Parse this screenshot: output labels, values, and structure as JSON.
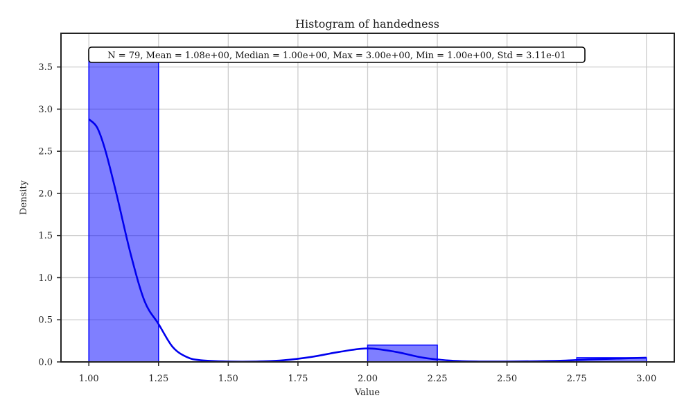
{
  "chart_data": {
    "type": "bar",
    "title": "Histogram of handedness",
    "xlabel": "Value",
    "ylabel": "Density",
    "xlim": [
      0.9,
      3.1
    ],
    "ylim": [
      0,
      3.9
    ],
    "xticks": [
      1.0,
      1.25,
      1.5,
      1.75,
      2.0,
      2.25,
      2.5,
      2.75,
      3.0
    ],
    "xtick_labels": [
      "1.00",
      "1.25",
      "1.50",
      "1.75",
      "2.00",
      "2.25",
      "2.50",
      "2.75",
      "3.00"
    ],
    "yticks": [
      0,
      0.5,
      1.0,
      1.5,
      2.0,
      2.5,
      3.0,
      3.5
    ],
    "ytick_labels": [
      "0.0",
      "0.5",
      "1.0",
      "1.5",
      "2.0",
      "2.5",
      "3.0",
      "3.5"
    ],
    "grid": true,
    "bins": [
      {
        "x0": 1.0,
        "x1": 1.25,
        "density": 3.6
      },
      {
        "x0": 1.25,
        "x1": 1.5,
        "density": 0.0
      },
      {
        "x0": 1.5,
        "x1": 1.75,
        "density": 0.0
      },
      {
        "x0": 1.75,
        "x1": 2.0,
        "density": 0.0
      },
      {
        "x0": 2.0,
        "x1": 2.25,
        "density": 0.2
      },
      {
        "x0": 2.25,
        "x1": 2.5,
        "density": 0.0
      },
      {
        "x0": 2.5,
        "x1": 2.75,
        "density": 0.0
      },
      {
        "x0": 2.75,
        "x1": 3.0,
        "density": 0.05
      }
    ],
    "kde": {
      "x": [
        1.0,
        1.03,
        1.06,
        1.1,
        1.15,
        1.2,
        1.25,
        1.3,
        1.35,
        1.4,
        1.5,
        1.6,
        1.7,
        1.8,
        1.9,
        2.0,
        2.1,
        2.2,
        2.3,
        2.4,
        2.5,
        2.6,
        2.7,
        2.8,
        2.9,
        3.0
      ],
      "y": [
        2.88,
        2.78,
        2.5,
        1.98,
        1.28,
        0.72,
        0.45,
        0.18,
        0.06,
        0.02,
        0.005,
        0.005,
        0.02,
        0.06,
        0.12,
        0.16,
        0.12,
        0.05,
        0.015,
        0.005,
        0.005,
        0.008,
        0.015,
        0.03,
        0.04,
        0.05
      ]
    },
    "bar_color": "#0000ff",
    "bar_fill_opacity": 0.5,
    "kde_color": "#0000ee",
    "annotation": "N = 79, Mean = 1.08e+00, Median = 1.00e+00, Max = 3.00e+00, Min = 1.00e+00, Std = 3.11e-01"
  }
}
